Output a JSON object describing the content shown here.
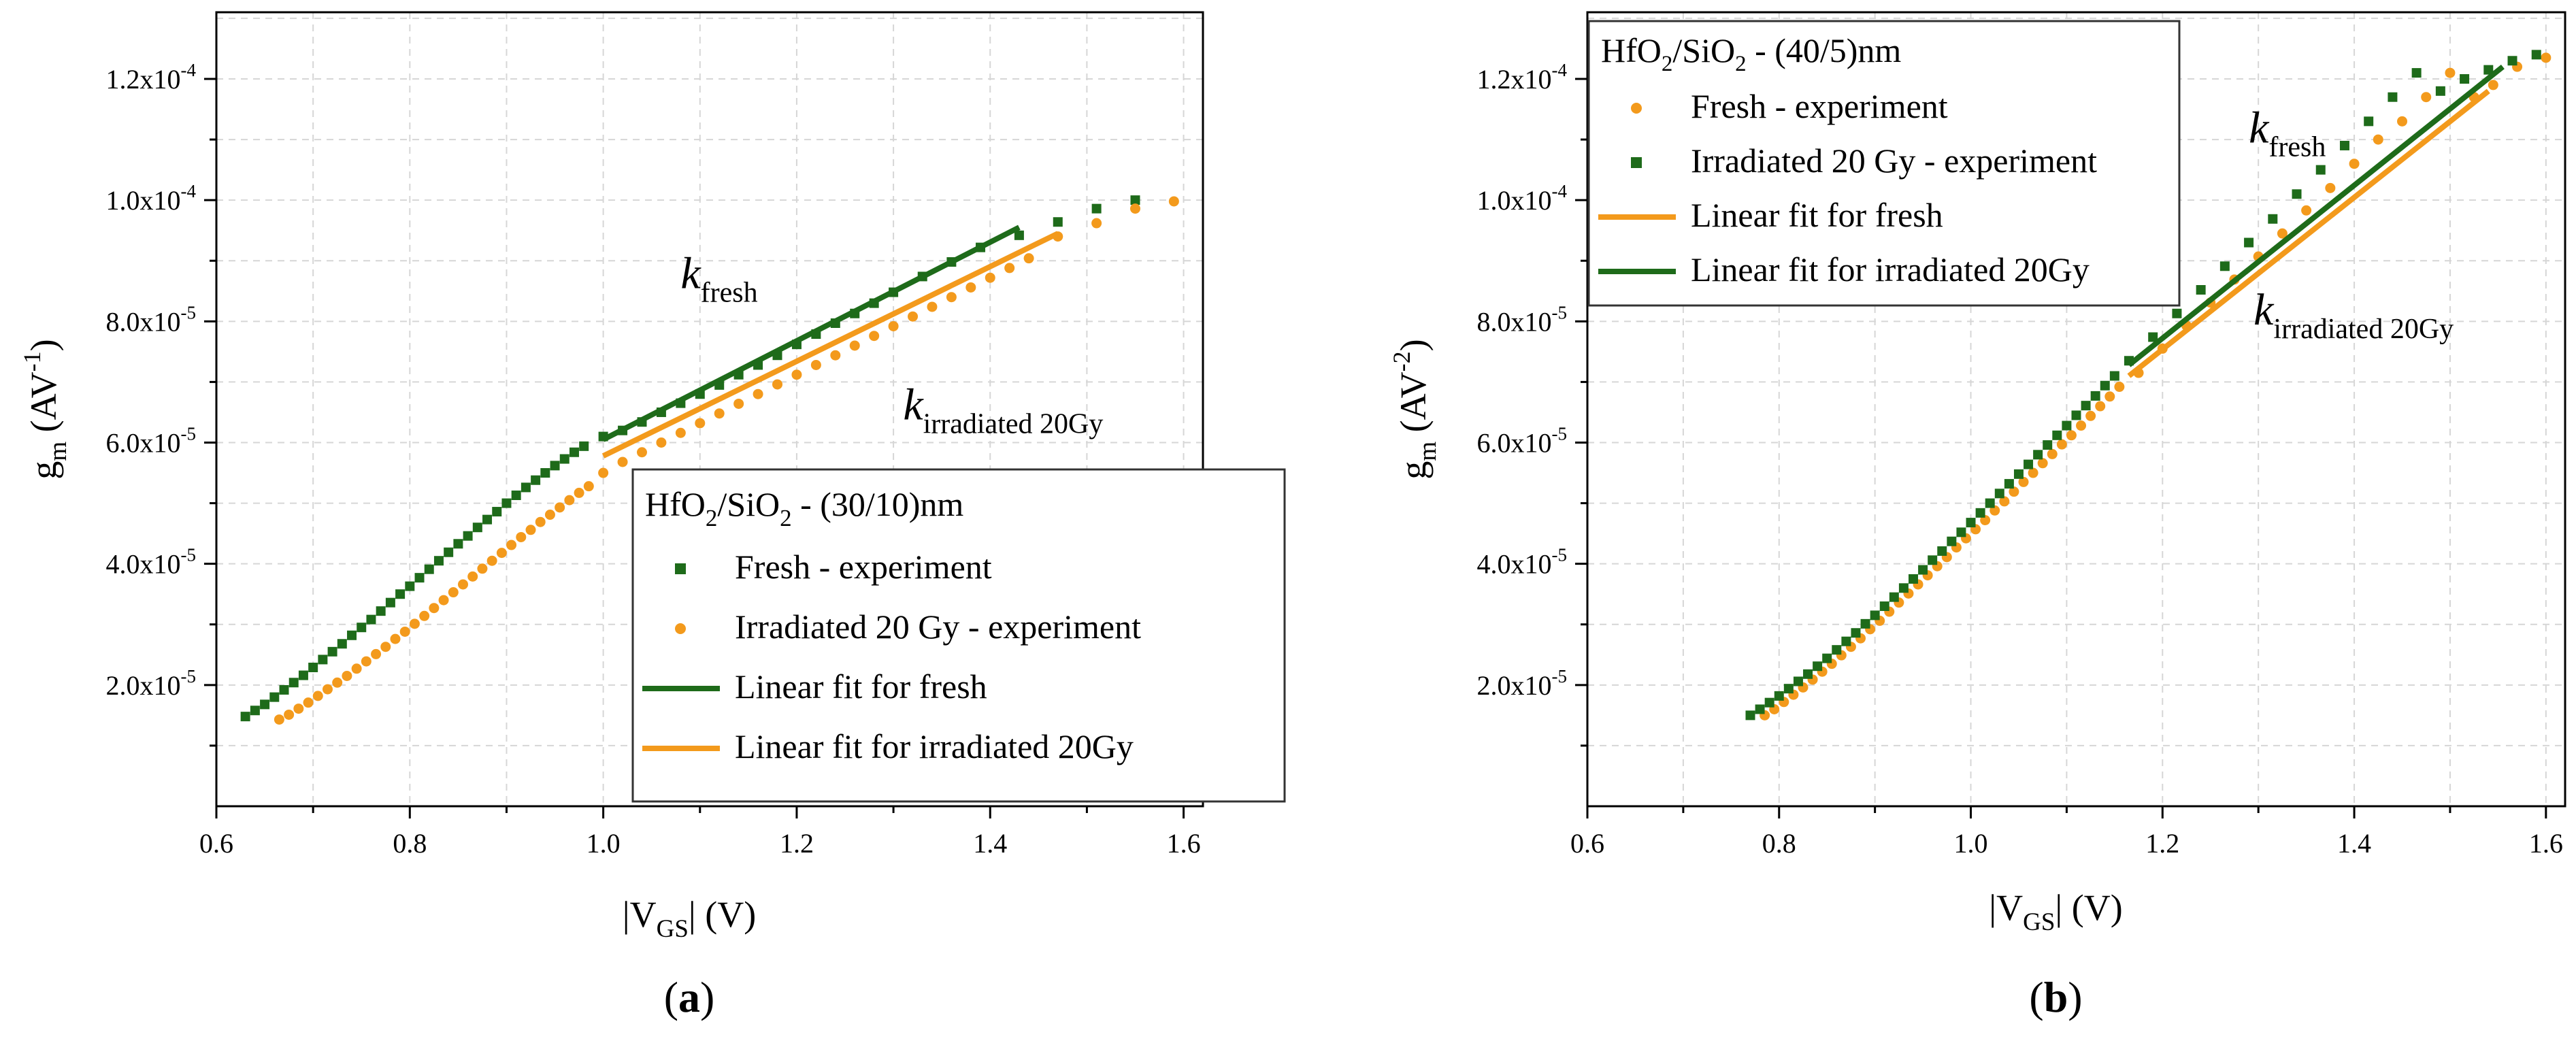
{
  "colors": {
    "fresh": "#1e6b1a",
    "irradiated": "#f39a1c",
    "axis": "#000000",
    "grid": "#d6d6d6"
  },
  "chart_data": [
    {
      "type": "scatter",
      "panel_label": "a",
      "legend_title": "HfO2/SiO2 - (30/10)nm",
      "xlabel": "|VGS| (V)",
      "ylabel": "gm (AV-1)",
      "xlim": [
        0.6,
        1.62
      ],
      "ylim": [
        0,
        0.000131
      ],
      "xticks": [
        0.6,
        0.8,
        1.0,
        1.2,
        1.4,
        1.6
      ],
      "xtick_labels": [
        "0.6",
        "0.8",
        "1.0",
        "1.2",
        "1.4",
        "1.6"
      ],
      "yticks": [
        2e-05,
        4e-05,
        6e-05,
        8e-05,
        0.0001,
        0.00012
      ],
      "ytick_labels": [
        {
          "m": "2.0x10",
          "e": "-5"
        },
        {
          "m": "4.0x10",
          "e": "-5"
        },
        {
          "m": "6.0x10",
          "e": "-5"
        },
        {
          "m": "8.0x10",
          "e": "-5"
        },
        {
          "m": "1.0x10",
          "e": "-4"
        },
        {
          "m": "1.2x10",
          "e": "-4"
        }
      ],
      "series": [
        {
          "name": "Fresh - experiment",
          "kind": "square",
          "color": "fresh",
          "x": [
            0.63,
            0.64,
            0.65,
            0.66,
            0.67,
            0.68,
            0.69,
            0.7,
            0.71,
            0.72,
            0.73,
            0.74,
            0.75,
            0.76,
            0.77,
            0.78,
            0.79,
            0.8,
            0.81,
            0.82,
            0.83,
            0.84,
            0.85,
            0.86,
            0.87,
            0.88,
            0.89,
            0.9,
            0.91,
            0.92,
            0.93,
            0.94,
            0.95,
            0.96,
            0.97,
            0.98,
            1.0,
            1.02,
            1.04,
            1.06,
            1.08,
            1.1,
            1.12,
            1.14,
            1.16,
            1.18,
            1.2,
            1.22,
            1.24,
            1.26,
            1.28,
            1.3,
            1.33,
            1.36,
            1.39,
            1.43,
            1.47,
            1.51,
            1.55
          ],
          "y": [
            1.48e-05,
            1.58e-05,
            1.68e-05,
            1.8e-05,
            1.92e-05,
            2.04e-05,
            2.16e-05,
            2.29e-05,
            2.42e-05,
            2.55e-05,
            2.68e-05,
            2.82e-05,
            2.95e-05,
            3.08e-05,
            3.22e-05,
            3.36e-05,
            3.5e-05,
            3.63e-05,
            3.77e-05,
            3.91e-05,
            4.05e-05,
            4.19e-05,
            4.33e-05,
            4.46e-05,
            4.6e-05,
            4.73e-05,
            4.86e-05,
            5e-05,
            5.13e-05,
            5.26e-05,
            5.38e-05,
            5.5e-05,
            5.62e-05,
            5.73e-05,
            5.84e-05,
            5.94e-05,
            6.1e-05,
            6.2e-05,
            6.34e-05,
            6.5e-05,
            6.65e-05,
            6.8e-05,
            6.95e-05,
            7.12e-05,
            7.28e-05,
            7.44e-05,
            7.62e-05,
            7.79e-05,
            7.97e-05,
            8.13e-05,
            8.3e-05,
            8.48e-05,
            8.74e-05,
            8.98e-05,
            9.22e-05,
            9.42e-05,
            9.64e-05,
            9.86e-05,
            0.0001
          ]
        },
        {
          "name": "Irradiated 20 Gy - experiment",
          "kind": "circle",
          "color": "irradiated",
          "x": [
            0.665,
            0.675,
            0.685,
            0.695,
            0.705,
            0.715,
            0.725,
            0.735,
            0.745,
            0.755,
            0.765,
            0.775,
            0.785,
            0.795,
            0.805,
            0.815,
            0.825,
            0.835,
            0.845,
            0.855,
            0.865,
            0.875,
            0.885,
            0.895,
            0.905,
            0.915,
            0.925,
            0.935,
            0.945,
            0.955,
            0.965,
            0.975,
            0.985,
            1.0,
            1.02,
            1.04,
            1.06,
            1.08,
            1.1,
            1.12,
            1.14,
            1.16,
            1.18,
            1.2,
            1.22,
            1.24,
            1.26,
            1.28,
            1.3,
            1.32,
            1.34,
            1.36,
            1.38,
            1.4,
            1.42,
            1.44,
            1.47,
            1.51,
            1.55,
            1.59
          ],
          "y": [
            1.43e-05,
            1.51e-05,
            1.61e-05,
            1.71e-05,
            1.82e-05,
            1.93e-05,
            2.04e-05,
            2.15e-05,
            2.27e-05,
            2.39e-05,
            2.51e-05,
            2.63e-05,
            2.76e-05,
            2.88e-05,
            3.01e-05,
            3.14e-05,
            3.27e-05,
            3.4e-05,
            3.53e-05,
            3.66e-05,
            3.79e-05,
            3.92e-05,
            4.05e-05,
            4.18e-05,
            4.31e-05,
            4.44e-05,
            4.56e-05,
            4.69e-05,
            4.81e-05,
            4.93e-05,
            5.05e-05,
            5.17e-05,
            5.28e-05,
            5.5e-05,
            5.68e-05,
            5.84e-05,
            6e-05,
            6.16e-05,
            6.32e-05,
            6.48e-05,
            6.64e-05,
            6.8e-05,
            6.96e-05,
            7.12e-05,
            7.28e-05,
            7.44e-05,
            7.6e-05,
            7.76e-05,
            7.92e-05,
            8.08e-05,
            8.24e-05,
            8.4e-05,
            8.56e-05,
            8.72e-05,
            8.88e-05,
            9.04e-05,
            9.4e-05,
            9.62e-05,
            9.86e-05,
            9.98e-05
          ]
        },
        {
          "name": "Linear fit for fresh",
          "kind": "line",
          "color": "fresh",
          "x": [
            1.0,
            1.43
          ],
          "y": [
            6.05e-05,
            9.55e-05
          ]
        },
        {
          "name": "Linear fit for irradiated 20Gy",
          "kind": "line",
          "color": "irradiated",
          "x": [
            1.0,
            1.47
          ],
          "y": [
            5.78e-05,
            9.45e-05
          ]
        }
      ],
      "annotations": [
        {
          "base": "k",
          "sub": "fresh",
          "x": 1.08,
          "y": 8.55e-05
        },
        {
          "base": "k",
          "sub": "irradiated 20Gy",
          "x": 1.31,
          "y": 6.38e-05
        }
      ]
    },
    {
      "type": "scatter",
      "panel_label": "b",
      "legend_title": "HfO2/SiO2 - (40/5)nm",
      "xlabel": "|VGS| (V)",
      "ylabel": "gm (AV-2)",
      "xlim": [
        0.6,
        1.62
      ],
      "ylim": [
        0,
        0.000131
      ],
      "xticks": [
        0.6,
        0.8,
        1.0,
        1.2,
        1.4,
        1.6
      ],
      "xtick_labels": [
        "0.6",
        "0.8",
        "1.0",
        "1.2",
        "1.4",
        "1.6"
      ],
      "yticks": [
        2e-05,
        4e-05,
        6e-05,
        8e-05,
        0.0001,
        0.00012
      ],
      "ytick_labels": [
        {
          "m": "2.0x10",
          "e": "-5"
        },
        {
          "m": "4.0x10",
          "e": "-5"
        },
        {
          "m": "6.0x10",
          "e": "-5"
        },
        {
          "m": "8.0x10",
          "e": "-5"
        },
        {
          "m": "1.0x10",
          "e": "-4"
        },
        {
          "m": "1.2x10",
          "e": "-4"
        }
      ],
      "series": [
        {
          "name": "Fresh - experiment",
          "kind": "circle",
          "color": "irradiated",
          "x": [
            0.785,
            0.795,
            0.805,
            0.815,
            0.825,
            0.835,
            0.845,
            0.855,
            0.865,
            0.875,
            0.885,
            0.895,
            0.905,
            0.915,
            0.925,
            0.935,
            0.945,
            0.955,
            0.965,
            0.975,
            0.985,
            0.995,
            1.005,
            1.015,
            1.025,
            1.035,
            1.045,
            1.055,
            1.065,
            1.075,
            1.085,
            1.095,
            1.105,
            1.115,
            1.125,
            1.135,
            1.145,
            1.155,
            1.175,
            1.2,
            1.225,
            1.25,
            1.275,
            1.3,
            1.325,
            1.35,
            1.375,
            1.4,
            1.425,
            1.45,
            1.475,
            1.5,
            1.525,
            1.545,
            1.57,
            1.6
          ],
          "y": [
            1.5e-05,
            1.6e-05,
            1.72e-05,
            1.84e-05,
            1.96e-05,
            2.09e-05,
            2.22e-05,
            2.35e-05,
            2.49e-05,
            2.63e-05,
            2.77e-05,
            2.92e-05,
            3.06e-05,
            3.21e-05,
            3.36e-05,
            3.51e-05,
            3.66e-05,
            3.81e-05,
            3.96e-05,
            4.11e-05,
            4.27e-05,
            4.42e-05,
            4.57e-05,
            4.72e-05,
            4.88e-05,
            5.03e-05,
            5.19e-05,
            5.35e-05,
            5.5e-05,
            5.66e-05,
            5.81e-05,
            5.97e-05,
            6.12e-05,
            6.28e-05,
            6.44e-05,
            6.6e-05,
            6.76e-05,
            6.92e-05,
            7.15e-05,
            7.55e-05,
            7.93e-05,
            8.31e-05,
            8.69e-05,
            9.07e-05,
            9.45e-05,
            9.83e-05,
            0.000102,
            0.000106,
            0.00011,
            0.000113,
            0.000117,
            0.000121,
            0.000117,
            0.000119,
            0.000122,
            0.0001235
          ]
        },
        {
          "name": "Irradiated 20 Gy - experiment",
          "kind": "square",
          "color": "fresh",
          "x": [
            0.77,
            0.78,
            0.79,
            0.8,
            0.81,
            0.82,
            0.83,
            0.84,
            0.85,
            0.86,
            0.87,
            0.88,
            0.89,
            0.9,
            0.91,
            0.92,
            0.93,
            0.94,
            0.95,
            0.96,
            0.97,
            0.98,
            0.99,
            1.0,
            1.01,
            1.02,
            1.03,
            1.04,
            1.05,
            1.06,
            1.07,
            1.08,
            1.09,
            1.1,
            1.11,
            1.12,
            1.13,
            1.14,
            1.15,
            1.165,
            1.19,
            1.215,
            1.24,
            1.265,
            1.29,
            1.315,
            1.34,
            1.365,
            1.39,
            1.415,
            1.44,
            1.465,
            1.49,
            1.515,
            1.54,
            1.565,
            1.59
          ],
          "y": [
            1.5e-05,
            1.6e-05,
            1.71e-05,
            1.82e-05,
            1.94e-05,
            2.06e-05,
            2.18e-05,
            2.31e-05,
            2.44e-05,
            2.58e-05,
            2.72e-05,
            2.86e-05,
            3.01e-05,
            3.15e-05,
            3.3e-05,
            3.45e-05,
            3.6e-05,
            3.75e-05,
            3.9e-05,
            4.06e-05,
            4.21e-05,
            4.37e-05,
            4.52e-05,
            4.68e-05,
            4.84e-05,
            5e-05,
            5.16e-05,
            5.32e-05,
            5.48e-05,
            5.64e-05,
            5.8e-05,
            5.96e-05,
            6.12e-05,
            6.28e-05,
            6.45e-05,
            6.61e-05,
            6.77e-05,
            6.94e-05,
            7.1e-05,
            7.35e-05,
            7.74e-05,
            8.13e-05,
            8.52e-05,
            8.91e-05,
            9.3e-05,
            9.69e-05,
            0.000101,
            0.000105,
            0.000109,
            0.000113,
            0.000117,
            0.000121,
            0.000118,
            0.00012,
            0.0001215,
            0.000123,
            0.000124
          ]
        },
        {
          "name": "Linear fit for fresh",
          "kind": "line",
          "color": "irradiated",
          "x": [
            1.165,
            1.54
          ],
          "y": [
            7.1e-05,
            0.000118
          ]
        },
        {
          "name": "Linear fit for irradiated 20Gy",
          "kind": "line",
          "color": "fresh",
          "x": [
            1.165,
            1.555
          ],
          "y": [
            7.28e-05,
            0.000122
          ]
        }
      ],
      "annotations": [
        {
          "base": "k",
          "sub": "fresh",
          "x": 1.29,
          "y": 0.0001095
        },
        {
          "base": "k",
          "sub": "irradiated 20Gy",
          "x": 1.295,
          "y": 7.95e-05
        }
      ]
    }
  ]
}
